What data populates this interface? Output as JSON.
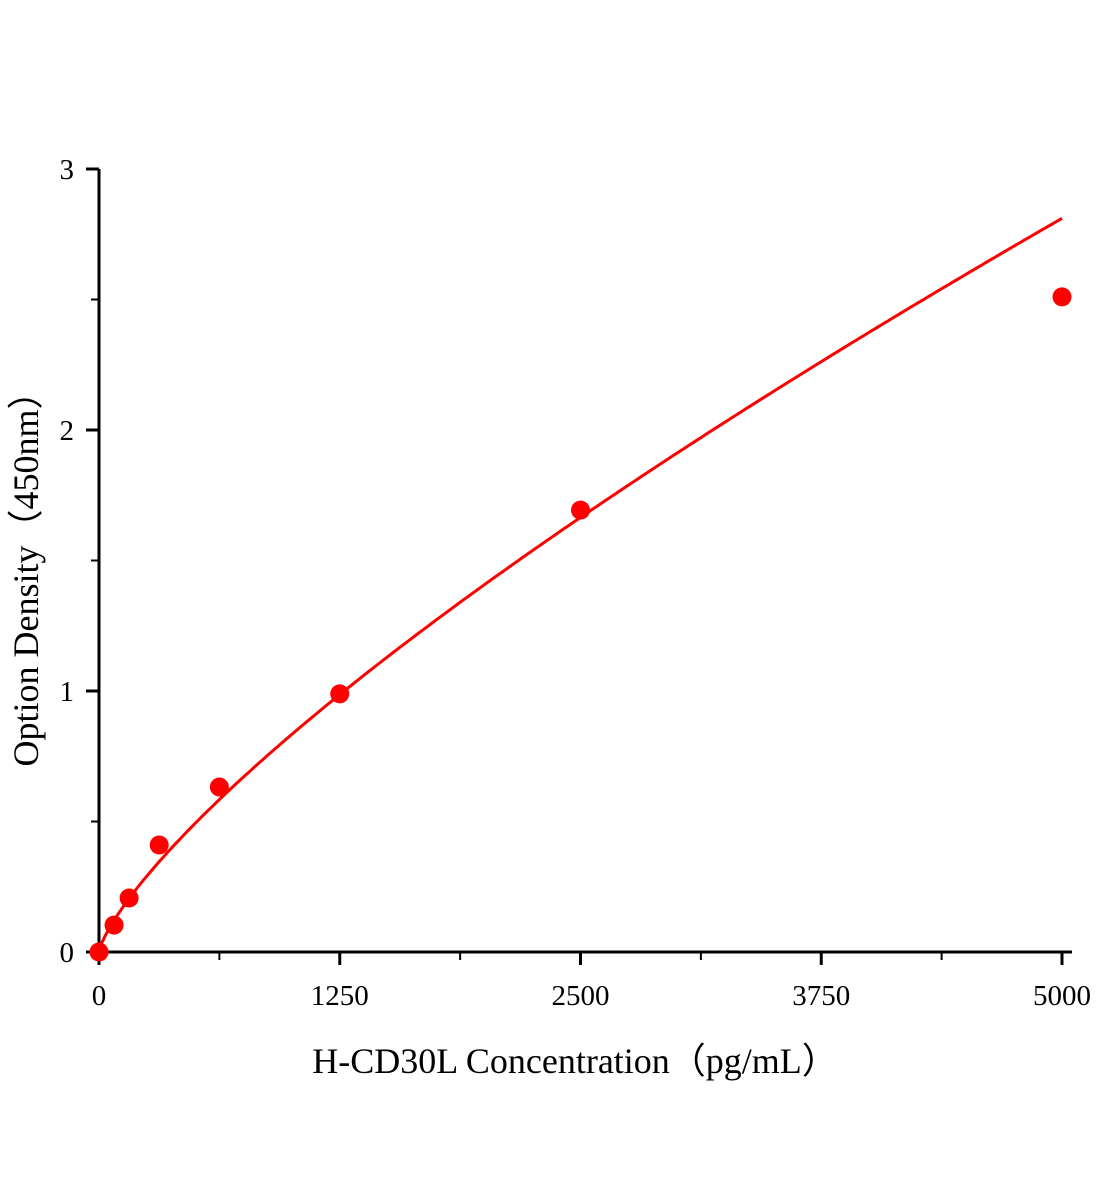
{
  "chart_data": {
    "type": "scatter",
    "title": "",
    "xlabel": "H-CD30L Concentration（pg/mL）",
    "ylabel": "Option Density（450nm）",
    "xlim": [
      0,
      5000
    ],
    "ylim": [
      0,
      3
    ],
    "xticks": [
      "0",
      "1250",
      "2500",
      "3750",
      "5000"
    ],
    "yticks": [
      "0",
      "1",
      "2",
      "3"
    ],
    "grid": false,
    "color": "#ff0000",
    "points": {
      "x": [
        0,
        78.125,
        156.25,
        312.5,
        625,
        1250,
        2500,
        5000
      ],
      "y": [
        0.0,
        0.103,
        0.207,
        0.41,
        0.632,
        0.989,
        1.693,
        2.51
      ]
    },
    "fit_curve": true
  }
}
